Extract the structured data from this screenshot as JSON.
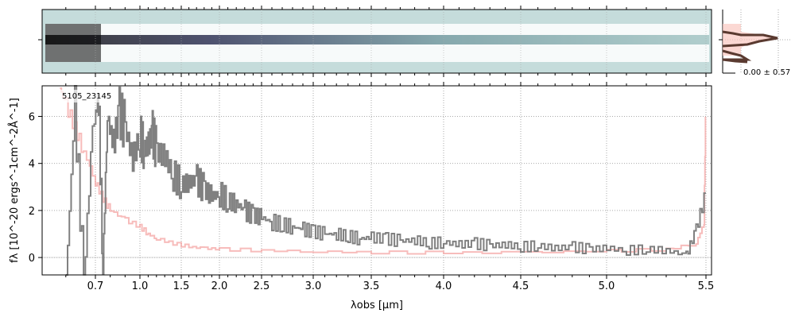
{
  "chart_data": {
    "type": "line",
    "title": "",
    "object_label": "5105_23145",
    "xlabel": "λobs [μm]",
    "ylabel": "fλ [10^-20 ergs^-1cm^-2Å^-1]",
    "xlim": [
      0.52,
      5.52
    ],
    "ylim": [
      -0.74,
      7.3
    ],
    "grid": true,
    "x_ticks": [
      0.7,
      1.0,
      1.5,
      2.0,
      2.5,
      3.0,
      3.5,
      4.0,
      4.5,
      5.0,
      5.5
    ],
    "x_tick_labels": [
      "0.7",
      "1.0",
      "1.5",
      "2.0",
      "2.5",
      "3.0",
      "3.5",
      "4.0",
      "4.5",
      "5.0",
      "5.5"
    ],
    "y_ticks": [
      0,
      2,
      4,
      6
    ],
    "y_tick_labels": [
      "0",
      "2",
      "4",
      "6"
    ],
    "series": [
      {
        "name": "flux",
        "color": "#808080",
        "x": [
          0.6,
          0.63,
          0.66,
          0.69,
          0.72,
          0.75,
          0.78,
          0.82,
          0.86,
          0.9,
          0.95,
          1.0,
          1.05,
          1.1,
          1.15,
          1.2,
          1.3,
          1.4,
          1.5,
          1.6,
          1.7,
          1.8,
          1.9,
          2.0,
          2.1,
          2.2,
          2.3,
          2.4,
          2.5,
          2.6,
          2.7,
          2.8,
          2.9,
          3.0,
          3.1,
          3.2,
          3.3,
          3.4,
          3.5,
          3.6,
          3.7,
          3.8,
          3.9,
          4.0,
          4.1,
          4.2,
          4.3,
          4.4,
          4.5,
          4.6,
          4.7,
          4.8,
          4.9,
          5.0,
          5.1,
          5.2,
          5.3,
          5.4,
          5.45,
          5.5
        ],
        "y": [
          -1,
          6.5,
          -1,
          5.5,
          7,
          -0.5,
          6,
          4.8,
          6.2,
          5.5,
          4.2,
          5.2,
          4.6,
          4.8,
          5.3,
          4.5,
          4.3,
          3.5,
          3.1,
          3.2,
          3.3,
          2.9,
          2.6,
          2.7,
          2.4,
          2.3,
          2.0,
          1.8,
          1.7,
          1.5,
          1.4,
          1.3,
          1.2,
          1.1,
          1.0,
          1.0,
          0.9,
          0.8,
          0.85,
          0.8,
          0.7,
          0.75,
          0.6,
          0.65,
          0.55,
          0.6,
          0.5,
          0.55,
          0.45,
          0.5,
          0.4,
          0.45,
          0.35,
          0.4,
          0.3,
          0.35,
          0.3,
          0.1,
          1.2,
          2.8
        ]
      },
      {
        "name": "uncertainty",
        "color": "#f4a6a4",
        "x": [
          0.58,
          0.6,
          0.63,
          0.66,
          0.7,
          0.75,
          0.8,
          0.9,
          1.0,
          1.1,
          1.2,
          1.4,
          1.6,
          1.8,
          2.0,
          2.5,
          3.0,
          3.5,
          4.0,
          4.5,
          5.0,
          5.3,
          5.45,
          5.49,
          5.5
        ],
        "y": [
          7.2,
          6.5,
          5.5,
          4.5,
          3.2,
          2.5,
          2.0,
          1.6,
          1.3,
          1.0,
          0.8,
          0.6,
          0.45,
          0.4,
          0.35,
          0.3,
          0.25,
          0.22,
          0.2,
          0.22,
          0.28,
          0.35,
          0.6,
          1.5,
          7.3
        ]
      }
    ],
    "side_panel": {
      "label": "0.00 ± 0.57"
    }
  }
}
